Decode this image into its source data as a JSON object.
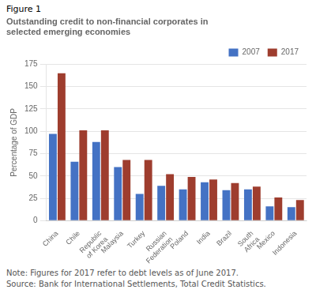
{
  "chart_data": {
    "type": "bar",
    "title": [
      "Outstanding credit to non-financial corporates in",
      "selected emerging economies"
    ],
    "annotations": [
      "Figure 1",
      "Note: Figures for 2017 refer to debt levels as of June 2017.",
      "Source: Bank for International Settlements, Total Credit Statistics."
    ],
    "ylabel": "Percentage of GDP",
    "categories": [
      "China",
      "Chile",
      "Republic\nof Korea",
      "Malaysia",
      "Turkey",
      "Russian\nFederation",
      "Poland",
      "India",
      "Brazil",
      "South\nAfrica",
      "Mexico",
      "Indonesia"
    ],
    "series": [
      {
        "name": "2007",
        "color": "#4472C4",
        "values": [
          97,
          66,
          88,
          60,
          30,
          39,
          35,
          43,
          34,
          35,
          16,
          15
        ]
      },
      {
        "name": "2017",
        "color": "#9E3D2E",
        "values": [
          165,
          101,
          101,
          68,
          68,
          52,
          49,
          46,
          42,
          38,
          26,
          23
        ]
      }
    ],
    "ylim": [
      0,
      175
    ],
    "yticks": [
      0,
      25,
      50,
      75,
      100,
      125,
      150,
      175
    ],
    "grid": true,
    "legend": "upper right"
  }
}
